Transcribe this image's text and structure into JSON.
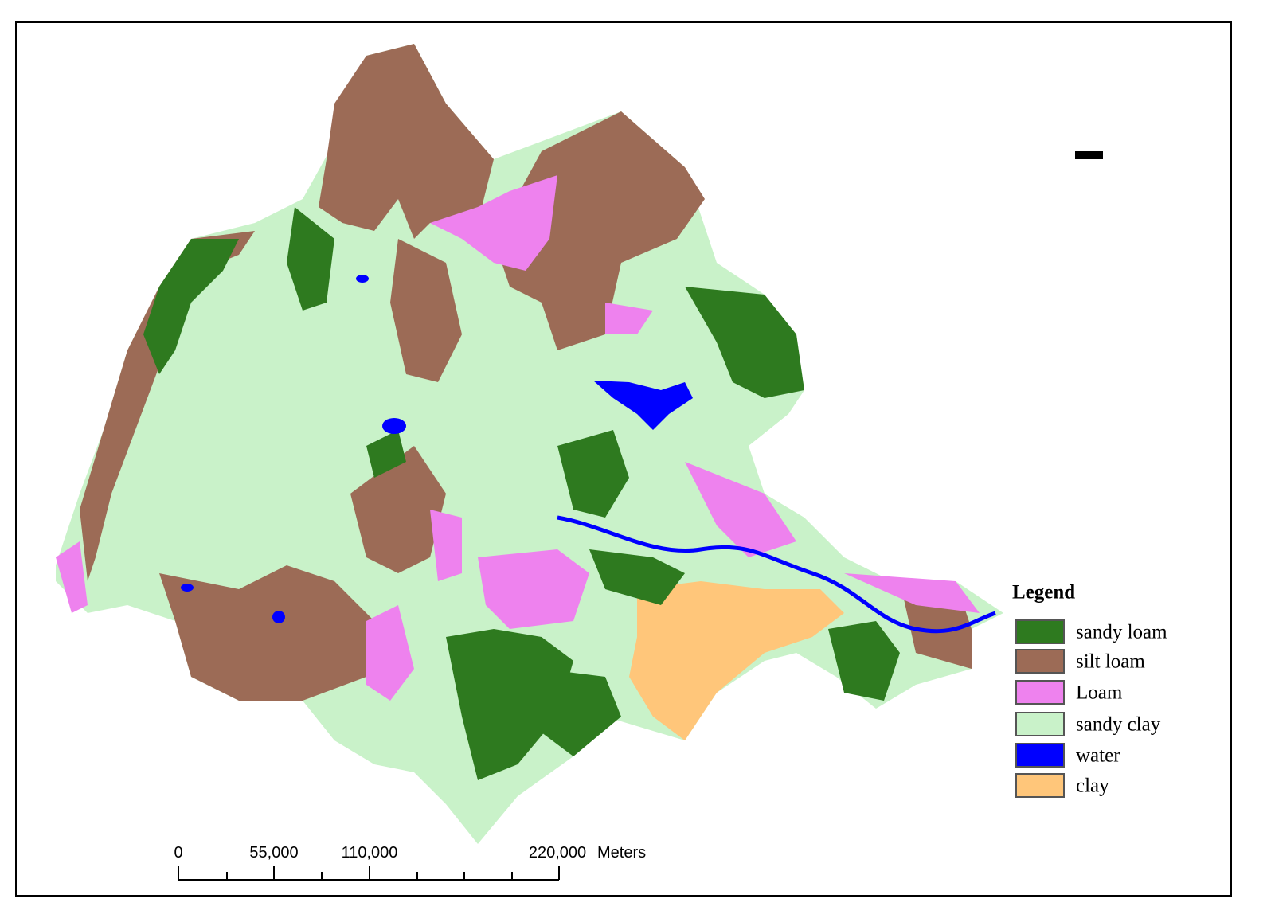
{
  "legend": {
    "title": "Legend",
    "items": [
      {
        "label": "sandy loam",
        "color": "#2e7a1f"
      },
      {
        "label": "silt loam",
        "color": "#9c6b56"
      },
      {
        "label": "Loam",
        "color": "#ee82ee"
      },
      {
        "label": "sandy clay",
        "color": "#c9f2c9"
      },
      {
        "label": "water",
        "color": "#0000ff"
      },
      {
        "label": "clay",
        "color": "#ffc67a"
      }
    ]
  },
  "scale_bar": {
    "labels": [
      "0",
      "55,000",
      "110,000",
      "220,000"
    ],
    "unit": "Meters"
  }
}
